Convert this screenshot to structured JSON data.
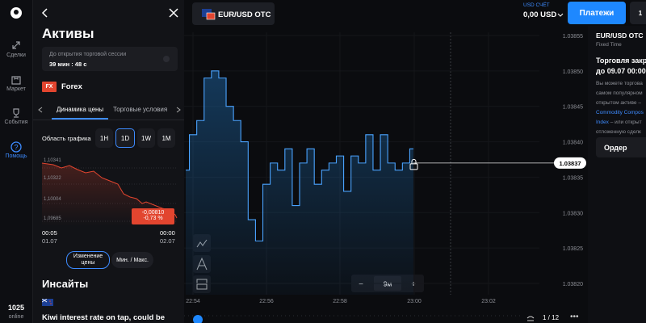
{
  "sidebar": {
    "nav": [
      {
        "label": "Сделки"
      },
      {
        "label": "Маркет"
      },
      {
        "label": "События"
      },
      {
        "label": "Помощь"
      }
    ],
    "online_count": "1025",
    "online_label": "online"
  },
  "assets_panel": {
    "title": "Активы",
    "session_notice": "До открытия торговой сессии",
    "session_timer": "39 мин : 48 с",
    "category_badge": "FX",
    "category": "Forex",
    "tabs": [
      "Динамика цены",
      "Торговые условия"
    ],
    "range_label": "Область графика",
    "ranges": [
      "1H",
      "1D",
      "1W",
      "1M"
    ],
    "mini_chart": {
      "price_labels": [
        "1,10341",
        "1,10322",
        "1,10004",
        "1,09685"
      ],
      "change": "-0,00810",
      "change_pct": "-0,73 %",
      "start_time": "00:05",
      "start_date": "01.07",
      "end_time": "00:00",
      "end_date": "02.07"
    },
    "modes": [
      "Изменение цены",
      "Мин. / Макс."
    ],
    "insights_title": "Инсайты",
    "insight_headline": "Kiwi interest rate on tap, could be"
  },
  "header": {
    "asset": "EUR/USD OTC",
    "account_label": "USD СЧЁТ",
    "balance": "0,00 USD",
    "payments_button": "Платежи",
    "badge": "1"
  },
  "chart": {
    "type": "line",
    "prices": [
      1.03836,
      1.03841,
      1.03843,
      1.03849,
      1.0385,
      1.03849,
      1.03845,
      1.03843,
      1.0384,
      1.03829,
      1.03826,
      1.03834,
      1.03837,
      1.03836,
      1.03839,
      1.03831,
      1.03837,
      1.03839,
      1.03834,
      1.03836,
      1.03837,
      1.03838,
      1.03833,
      1.03838,
      1.03837,
      1.03841,
      1.03836,
      1.03841,
      1.03837,
      1.03836,
      1.03837,
      1.03839
    ],
    "ylim": [
      1.0382,
      1.03855
    ],
    "yticks": [
      1.03855,
      {
        "value": 1.0385,
        "label": "1.03850"
      },
      1.03845,
      {
        "value": 1.0384,
        "label": "1.03840"
      },
      1.03835,
      {
        "value": 1.0383,
        "label": "1.03830"
      },
      1.03825,
      {
        "value": 1.0382,
        "label": "1.03820"
      }
    ],
    "current_price": 1.03837,
    "xticks": [
      "22:54",
      "22:56",
      "22:58",
      "23:00",
      "23:02"
    ],
    "zoom_out": "−",
    "timeframe": "9м",
    "zoom_in": "+",
    "pager": "1 / 12"
  },
  "info_panel": {
    "asset": "EUR/USD OTC",
    "mode": "Fixed Time",
    "status_lines": [
      "Торговля закр",
      "до 09.07 00:00"
    ],
    "description_lines": [
      "Вы можете торгова",
      "самом популярном",
      "открытом активе –"
    ],
    "link_start": "Commodity Compos",
    "link_end": "Index",
    "after_link": " – или открыт",
    "closing_line": "отложенную сделк",
    "order_button": "Ордер"
  }
}
